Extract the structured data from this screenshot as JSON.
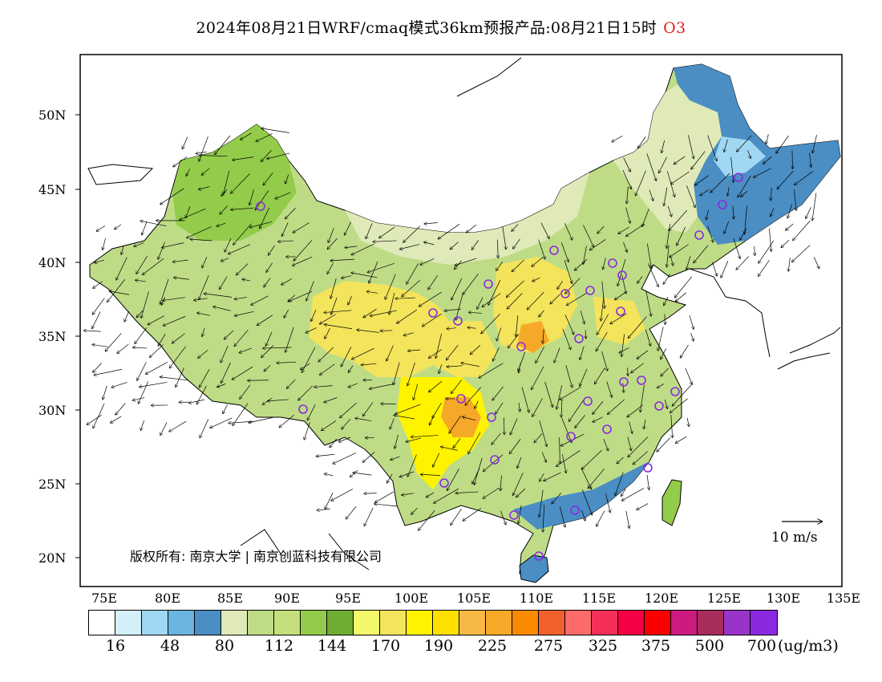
{
  "title": {
    "main": "2024年08月21日WRF/cmaq模式36km预报产品:08月21日15时",
    "pollutant": "O3",
    "pollutant_color": "#e02020"
  },
  "axes": {
    "lat_labels": [
      "50N",
      "45N",
      "40N",
      "35N",
      "30N",
      "25N",
      "20N"
    ],
    "lon_labels": [
      "75E",
      "80E",
      "85E",
      "90E",
      "95E",
      "100E",
      "105E",
      "110E",
      "115E",
      "120E",
      "125E",
      "130E",
      "135E"
    ]
  },
  "copyright": "版权所有: 南京大学 | 南京创蓝科技有限公司",
  "wind_reference": "10 m/s",
  "legend": {
    "colors": [
      "#ffffff",
      "#d4eefa",
      "#a0d8f3",
      "#6ab4e0",
      "#4a8ec4",
      "#dfeab8",
      "#bedc86",
      "#c4e07c",
      "#93cc4a",
      "#6eac34",
      "#f2f86a",
      "#f3e45c",
      "#fff300",
      "#ffe100",
      "#f7b845",
      "#f6a928",
      "#fa8a00",
      "#f05f2c",
      "#fd6a6a",
      "#f4305a",
      "#f40044",
      "#fc0000",
      "#cc1a80",
      "#a82c5c",
      "#9a34c8",
      "#8a2ae0"
    ],
    "tick_labels": [
      "16",
      "48",
      "80",
      "112",
      "144",
      "170",
      "190",
      "225",
      "275",
      "325",
      "375",
      "500",
      "700"
    ],
    "unit": "(ug/m3)"
  },
  "map_colors": {
    "background": "#ffffff",
    "low_blue": "#4a8ec4",
    "light_blue": "#a0d8f3",
    "pale_green": "#dfeab8",
    "green": "#bedc86",
    "mid_green": "#93cc4a",
    "dark_green": "#6eac34",
    "yellow": "#fff300",
    "gold": "#f3e45c",
    "orange": "#f6a928",
    "station_marker": "#8a2ae0"
  }
}
